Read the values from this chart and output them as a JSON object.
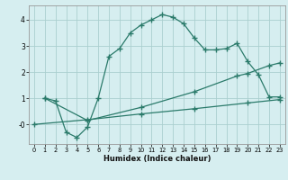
{
  "line1_x": [
    1,
    2,
    3,
    4,
    5,
    6,
    7,
    8,
    9,
    10,
    11,
    12,
    13,
    14,
    15,
    16,
    17,
    18,
    19,
    20,
    21,
    22,
    23
  ],
  "line1_y": [
    1.0,
    0.9,
    -0.3,
    -0.5,
    -0.1,
    1.0,
    2.6,
    2.9,
    3.5,
    3.8,
    4.0,
    4.2,
    4.1,
    3.85,
    3.3,
    2.85,
    2.85,
    2.9,
    3.1,
    2.4,
    1.9,
    1.05,
    1.05
  ],
  "line2_x": [
    1,
    5,
    10,
    15,
    19,
    20,
    22,
    23
  ],
  "line2_y": [
    1.0,
    0.15,
    0.65,
    1.25,
    1.85,
    1.95,
    2.25,
    2.35
  ],
  "line3_x": [
    0,
    5,
    10,
    15,
    20,
    23
  ],
  "line3_y": [
    0.0,
    0.18,
    0.4,
    0.6,
    0.82,
    0.95
  ],
  "line_color": "#2a7a6a",
  "bg_color": "#d6eef0",
  "grid_color": "#aacfcf",
  "xlabel": "Humidex (Indice chaleur)",
  "xticks": [
    0,
    1,
    2,
    3,
    4,
    5,
    6,
    7,
    8,
    9,
    10,
    11,
    12,
    13,
    14,
    15,
    16,
    17,
    18,
    19,
    20,
    21,
    22,
    23
  ],
  "ytick_vals": [
    0,
    1,
    2,
    3,
    4
  ],
  "ytick_labels": [
    "-0",
    "1",
    "2",
    "3",
    "4"
  ],
  "xlim": [
    -0.5,
    23.5
  ],
  "ylim": [
    -0.75,
    4.55
  ]
}
